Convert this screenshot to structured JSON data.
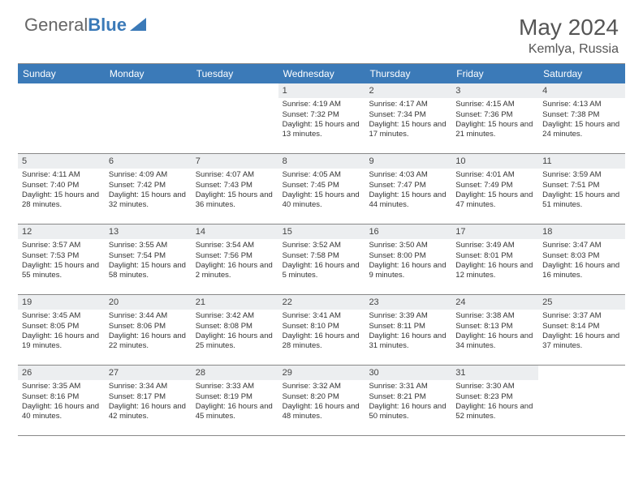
{
  "logo": {
    "text1": "General",
    "text2": "Blue"
  },
  "title": "May 2024",
  "location": "Kemlya, Russia",
  "dayHeaders": [
    "Sunday",
    "Monday",
    "Tuesday",
    "Wednesday",
    "Thursday",
    "Friday",
    "Saturday"
  ],
  "colors": {
    "headerBg": "#3b7ab8",
    "dayNumBg": "#eceef0",
    "border": "#888888",
    "text": "#333333",
    "titleText": "#555555"
  },
  "weeks": [
    [
      {
        "empty": true
      },
      {
        "empty": true
      },
      {
        "empty": true
      },
      {
        "num": "1",
        "sunrise": "4:19 AM",
        "sunset": "7:32 PM",
        "daylight": "15 hours and 13 minutes."
      },
      {
        "num": "2",
        "sunrise": "4:17 AM",
        "sunset": "7:34 PM",
        "daylight": "15 hours and 17 minutes."
      },
      {
        "num": "3",
        "sunrise": "4:15 AM",
        "sunset": "7:36 PM",
        "daylight": "15 hours and 21 minutes."
      },
      {
        "num": "4",
        "sunrise": "4:13 AM",
        "sunset": "7:38 PM",
        "daylight": "15 hours and 24 minutes."
      }
    ],
    [
      {
        "num": "5",
        "sunrise": "4:11 AM",
        "sunset": "7:40 PM",
        "daylight": "15 hours and 28 minutes."
      },
      {
        "num": "6",
        "sunrise": "4:09 AM",
        "sunset": "7:42 PM",
        "daylight": "15 hours and 32 minutes."
      },
      {
        "num": "7",
        "sunrise": "4:07 AM",
        "sunset": "7:43 PM",
        "daylight": "15 hours and 36 minutes."
      },
      {
        "num": "8",
        "sunrise": "4:05 AM",
        "sunset": "7:45 PM",
        "daylight": "15 hours and 40 minutes."
      },
      {
        "num": "9",
        "sunrise": "4:03 AM",
        "sunset": "7:47 PM",
        "daylight": "15 hours and 44 minutes."
      },
      {
        "num": "10",
        "sunrise": "4:01 AM",
        "sunset": "7:49 PM",
        "daylight": "15 hours and 47 minutes."
      },
      {
        "num": "11",
        "sunrise": "3:59 AM",
        "sunset": "7:51 PM",
        "daylight": "15 hours and 51 minutes."
      }
    ],
    [
      {
        "num": "12",
        "sunrise": "3:57 AM",
        "sunset": "7:53 PM",
        "daylight": "15 hours and 55 minutes."
      },
      {
        "num": "13",
        "sunrise": "3:55 AM",
        "sunset": "7:54 PM",
        "daylight": "15 hours and 58 minutes."
      },
      {
        "num": "14",
        "sunrise": "3:54 AM",
        "sunset": "7:56 PM",
        "daylight": "16 hours and 2 minutes."
      },
      {
        "num": "15",
        "sunrise": "3:52 AM",
        "sunset": "7:58 PM",
        "daylight": "16 hours and 5 minutes."
      },
      {
        "num": "16",
        "sunrise": "3:50 AM",
        "sunset": "8:00 PM",
        "daylight": "16 hours and 9 minutes."
      },
      {
        "num": "17",
        "sunrise": "3:49 AM",
        "sunset": "8:01 PM",
        "daylight": "16 hours and 12 minutes."
      },
      {
        "num": "18",
        "sunrise": "3:47 AM",
        "sunset": "8:03 PM",
        "daylight": "16 hours and 16 minutes."
      }
    ],
    [
      {
        "num": "19",
        "sunrise": "3:45 AM",
        "sunset": "8:05 PM",
        "daylight": "16 hours and 19 minutes."
      },
      {
        "num": "20",
        "sunrise": "3:44 AM",
        "sunset": "8:06 PM",
        "daylight": "16 hours and 22 minutes."
      },
      {
        "num": "21",
        "sunrise": "3:42 AM",
        "sunset": "8:08 PM",
        "daylight": "16 hours and 25 minutes."
      },
      {
        "num": "22",
        "sunrise": "3:41 AM",
        "sunset": "8:10 PM",
        "daylight": "16 hours and 28 minutes."
      },
      {
        "num": "23",
        "sunrise": "3:39 AM",
        "sunset": "8:11 PM",
        "daylight": "16 hours and 31 minutes."
      },
      {
        "num": "24",
        "sunrise": "3:38 AM",
        "sunset": "8:13 PM",
        "daylight": "16 hours and 34 minutes."
      },
      {
        "num": "25",
        "sunrise": "3:37 AM",
        "sunset": "8:14 PM",
        "daylight": "16 hours and 37 minutes."
      }
    ],
    [
      {
        "num": "26",
        "sunrise": "3:35 AM",
        "sunset": "8:16 PM",
        "daylight": "16 hours and 40 minutes."
      },
      {
        "num": "27",
        "sunrise": "3:34 AM",
        "sunset": "8:17 PM",
        "daylight": "16 hours and 42 minutes."
      },
      {
        "num": "28",
        "sunrise": "3:33 AM",
        "sunset": "8:19 PM",
        "daylight": "16 hours and 45 minutes."
      },
      {
        "num": "29",
        "sunrise": "3:32 AM",
        "sunset": "8:20 PM",
        "daylight": "16 hours and 48 minutes."
      },
      {
        "num": "30",
        "sunrise": "3:31 AM",
        "sunset": "8:21 PM",
        "daylight": "16 hours and 50 minutes."
      },
      {
        "num": "31",
        "sunrise": "3:30 AM",
        "sunset": "8:23 PM",
        "daylight": "16 hours and 52 minutes."
      },
      {
        "empty": true
      }
    ]
  ],
  "labels": {
    "sunrise": "Sunrise:",
    "sunset": "Sunset:",
    "daylight": "Daylight:"
  }
}
